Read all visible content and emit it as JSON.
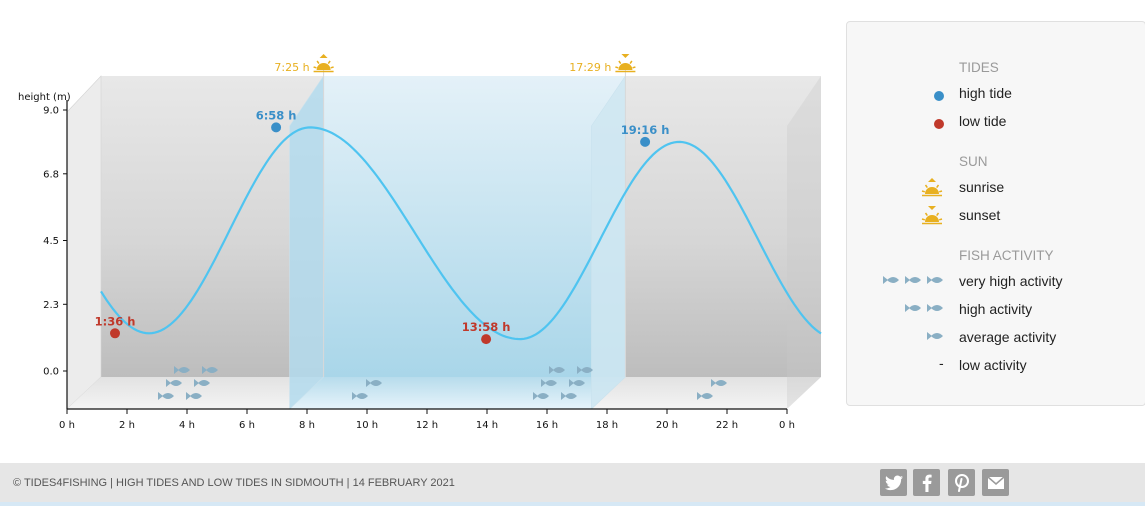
{
  "chart_data": {
    "type": "area",
    "ylabel": "height (m)",
    "y_ticks": [
      "9.0",
      "6.8",
      "4.5",
      "2.3",
      "0.0"
    ],
    "y_tick_values": [
      9.0,
      6.8,
      4.5,
      2.3,
      0.0
    ],
    "x_ticks": [
      "0 h",
      "2 h",
      "4 h",
      "6 h",
      "8 h",
      "10 h",
      "12 h",
      "14 h",
      "16 h",
      "18 h",
      "20 h",
      "22 h",
      "0 h"
    ],
    "xlim": [
      0,
      24
    ],
    "ylim": [
      -1.2,
      9.0
    ],
    "tides": [
      {
        "label": "1:36 h",
        "time": 1.6,
        "height": 1.3,
        "type": "low"
      },
      {
        "label": "6:58 h",
        "time": 6.97,
        "height": 8.4,
        "type": "high"
      },
      {
        "label": "13:58 h",
        "time": 13.97,
        "height": 1.1,
        "type": "low"
      },
      {
        "label": "19:16 h",
        "time": 19.27,
        "height": 7.9,
        "type": "high"
      }
    ],
    "sunrise": {
      "label": "7:25 h",
      "time": 7.42
    },
    "sunset": {
      "label": "17:29 h",
      "time": 17.48
    },
    "fish_activity": [
      {
        "time": 3.5,
        "level": "very high"
      },
      {
        "time": 9.5,
        "level": "average"
      },
      {
        "time": 16.0,
        "level": "very high"
      },
      {
        "time": 21.0,
        "level": "high"
      }
    ]
  },
  "legend": {
    "tides_header": "TIDES",
    "high_tide": "high tide",
    "low_tide": "low tide",
    "sun_header": "SUN",
    "sunrise": "sunrise",
    "sunset": "sunset",
    "fish_header": "FISH ACTIVITY",
    "very_high": "very high activity",
    "high": "high activity",
    "average": "average activity",
    "low": "low activity",
    "low_symbol": "-"
  },
  "colors": {
    "high_tide": "#3a8fc8",
    "low_tide": "#c0392b",
    "curve": "#4fc4f0",
    "sun": "#e8b020",
    "fish": "#8aafc4"
  },
  "footer": {
    "text": "© TIDES4FISHING | HIGH TIDES AND LOW TIDES IN SIDMOUTH | 14 FEBRUARY 2021",
    "icons": [
      "twitter-icon",
      "facebook-icon",
      "pinterest-icon",
      "email-icon"
    ]
  }
}
